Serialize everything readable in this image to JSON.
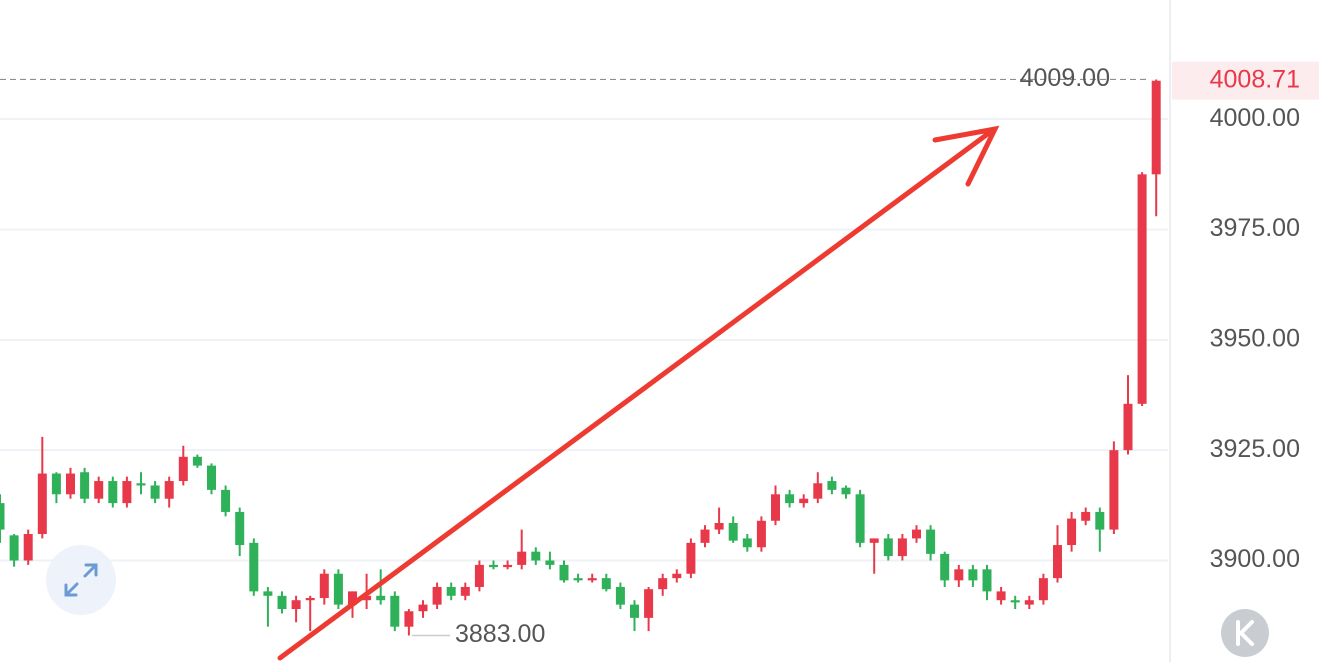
{
  "chart_data": {
    "type": "candlestick",
    "open": [
      3913,
      3905.7,
      3900,
      3906,
      3919.7,
      3915,
      3920,
      3914,
      3918,
      3913,
      3917.5,
      3917,
      3914,
      3918,
      3923.5,
      3921.5,
      3916,
      3911,
      3904,
      3893,
      3892,
      3889,
      3891,
      3891.5,
      3897,
      3890,
      3891,
      3892,
      3892,
      3885,
      3888.5,
      3890,
      3894,
      3892,
      3894,
      3899,
      3898.5,
      3899,
      3902,
      3900,
      3899,
      3896,
      3895.5,
      3896,
      3894,
      3890,
      3887,
      3893.5,
      3896,
      3897,
      3904,
      3907,
      3908.5,
      3905,
      3903,
      3909,
      3915,
      3913,
      3914,
      3918,
      3916.5,
      3915,
      3904,
      3905,
      3901,
      3905,
      3907,
      3901.5,
      3895.5,
      3898,
      3898,
      3891,
      3891,
      3890,
      3891,
      3896,
      3903.5,
      3909,
      3911,
      3907,
      3925,
      3935.5,
      3987.5
    ],
    "high": [
      3915,
      3906,
      3907,
      3928,
      3920,
      3921,
      3921,
      3919,
      3919,
      3919,
      3920,
      3918,
      3919,
      3926,
      3924,
      3922,
      3917,
      3912,
      3905,
      3894,
      3893,
      3892,
      3892,
      3898,
      3898,
      3893,
      3897,
      3898,
      3893,
      3889,
      3891,
      3895,
      3895,
      3895,
      3900,
      3900,
      3900,
      3907,
      3903,
      3902,
      3900,
      3897,
      3897,
      3897,
      3895,
      3891,
      3894,
      3897,
      3898,
      3905,
      3908,
      3912,
      3910,
      3906,
      3910,
      3917,
      3916,
      3915,
      3920,
      3919,
      3917,
      3916,
      3905,
      3906,
      3906,
      3908,
      3908,
      3902,
      3899,
      3899,
      3899,
      3894,
      3892,
      3892,
      3897,
      3908,
      3911,
      3912,
      3912,
      3927,
      3942,
      3988,
      4009
    ],
    "low": [
      3904,
      3898.6,
      3899,
      3905,
      3913,
      3914,
      3913,
      3913,
      3912,
      3912,
      3915,
      3913,
      3912,
      3917,
      3921,
      3915,
      3910,
      3901,
      3892,
      3885,
      3888,
      3886,
      3884,
      3890,
      3889,
      3887,
      3889,
      3890,
      3884,
      3883,
      3887,
      3889,
      3891,
      3891,
      3893,
      3898,
      3898,
      3898,
      3899,
      3898,
      3895,
      3895,
      3895,
      3893,
      3889,
      3884,
      3884,
      3892,
      3895,
      3896,
      3903,
      3906,
      3904,
      3902,
      3902,
      3908,
      3912,
      3912,
      3913,
      3915,
      3914,
      3903,
      3897,
      3900,
      3900,
      3904,
      3900,
      3894,
      3894,
      3894,
      3891,
      3890,
      3889,
      3889,
      3890,
      3895,
      3902,
      3908,
      3902,
      3906,
      3924,
      3935,
      3978
    ],
    "close": [
      3907,
      3900,
      3906,
      3919.7,
      3915,
      3919.7,
      3914,
      3918,
      3913,
      3918,
      3917,
      3914,
      3918,
      3923.5,
      3921.5,
      3916,
      3911,
      3903.5,
      3893,
      3892,
      3889,
      3891,
      3891.5,
      3897,
      3890,
      3893,
      3892,
      3891,
      3885,
      3888.5,
      3890,
      3894,
      3892,
      3894,
      3899,
      3898.5,
      3899,
      3902,
      3900,
      3899,
      3895.5,
      3895.5,
      3896,
      3893.5,
      3890,
      3887,
      3893.5,
      3896,
      3897,
      3904,
      3907,
      3908.5,
      3904.5,
      3903,
      3909,
      3915,
      3913,
      3914,
      3917.5,
      3916,
      3915,
      3904,
      3905,
      3901,
      3905,
      3907,
      3901.5,
      3895.5,
      3898,
      3895.5,
      3893,
      3893,
      3890.5,
      3891,
      3896,
      3903.5,
      3909.5,
      3911,
      3907,
      3925,
      3935.5,
      3987.5,
      4008.71
    ],
    "up_color": "#e8394a",
    "down_color": "#2fb15a",
    "ylim": [
      3877,
      4027
    ],
    "yticks": [
      {
        "value": 3900,
        "label": "3900.00"
      },
      {
        "value": 3925,
        "label": "3925.00"
      },
      {
        "value": 3950,
        "label": "3950.00"
      },
      {
        "value": 3975,
        "label": "3975.00"
      },
      {
        "value": 4000,
        "label": "4000.00"
      }
    ],
    "grid": true,
    "last_price": 4008.71,
    "high_marker": {
      "value": 4009,
      "label": "4009.00"
    },
    "low_marker": {
      "value": 3883,
      "label": "3883.00"
    }
  }
}
